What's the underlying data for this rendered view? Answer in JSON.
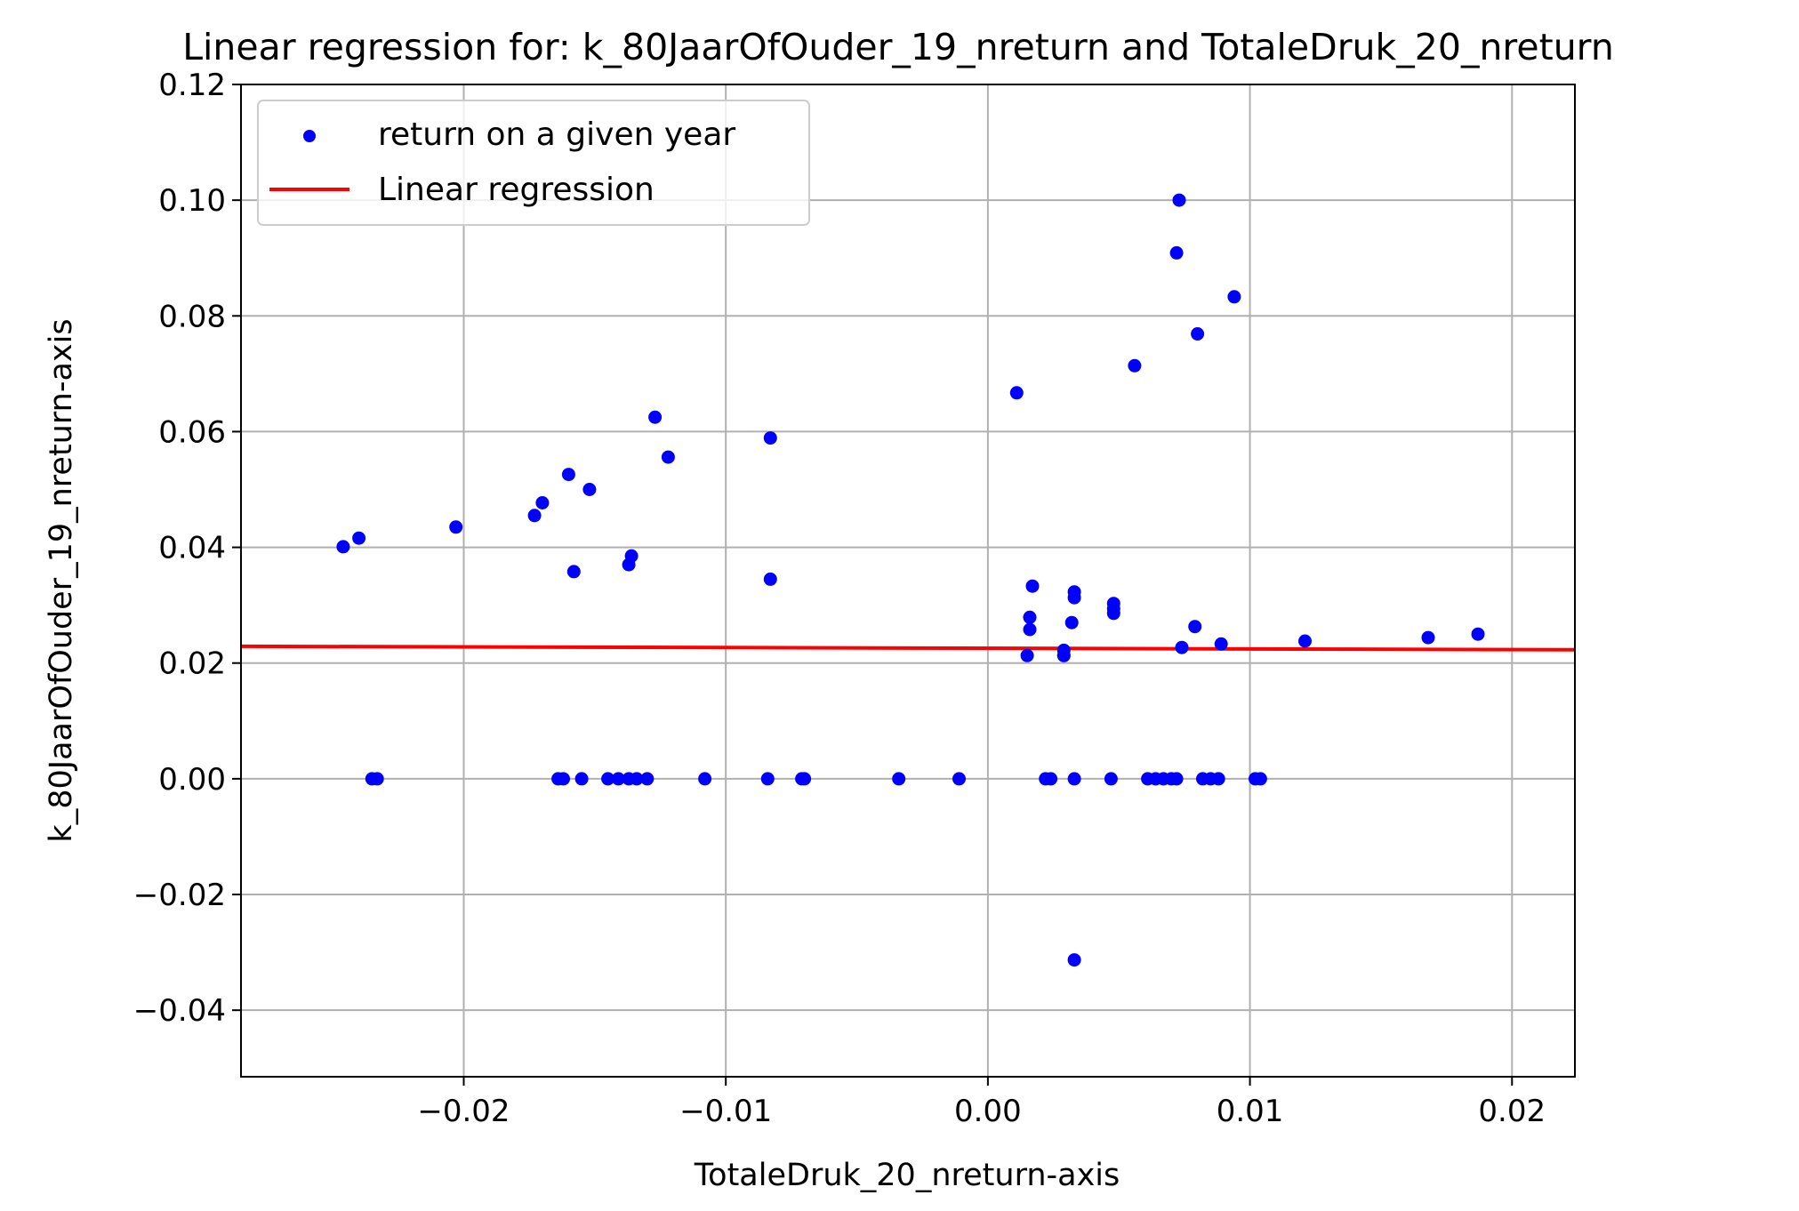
{
  "chart_data": {
    "type": "scatter",
    "title": "Linear regression for: k_80JaarOfOuder_19_nreturn and TotaleDruk_20_nreturn",
    "xlabel": "TotaleDruk_20_nreturn-axis",
    "ylabel": "k_80JaarOfOuder_19_nreturn-axis",
    "xlim": [
      -0.0285,
      0.0224
    ],
    "ylim": [
      -0.0515,
      0.12
    ],
    "xticks": [
      -0.02,
      -0.01,
      0.0,
      0.01,
      0.02
    ],
    "xtick_labels": [
      "−0.02",
      "−0.01",
      "0.00",
      "0.01",
      "0.02"
    ],
    "yticks": [
      -0.04,
      -0.02,
      0.0,
      0.02,
      0.04,
      0.06,
      0.08,
      0.1,
      0.12
    ],
    "ytick_labels": [
      "−0.04",
      "−0.02",
      "0.00",
      "0.02",
      "0.04",
      "0.06",
      "0.08",
      "0.10",
      "0.12"
    ],
    "grid": true,
    "legend_position": "top-left",
    "colors": {
      "points": "#0000ff",
      "regression": "#ff0000",
      "grid": "#b0b0b0"
    },
    "series": [
      {
        "name": "return on a given year",
        "kind": "scatter",
        "points": [
          [
            -0.0246,
            0.0401
          ],
          [
            -0.024,
            0.0416
          ],
          [
            -0.0235,
            0.0
          ],
          [
            -0.0233,
            0.0
          ],
          [
            -0.0203,
            0.0435
          ],
          [
            -0.0173,
            0.0455
          ],
          [
            -0.017,
            0.0477
          ],
          [
            -0.0164,
            0.0
          ],
          [
            -0.0162,
            0.0
          ],
          [
            -0.016,
            0.0526
          ],
          [
            -0.0158,
            0.0358
          ],
          [
            -0.0155,
            0.0
          ],
          [
            -0.0152,
            0.05
          ],
          [
            -0.0145,
            0.0
          ],
          [
            -0.0141,
            0.0
          ],
          [
            -0.0137,
            0.037
          ],
          [
            -0.0136,
            0.0385
          ],
          [
            -0.0137,
            0.0
          ],
          [
            -0.0134,
            0.0
          ],
          [
            -0.0127,
            0.0625
          ],
          [
            -0.013,
            0.0
          ],
          [
            -0.0122,
            0.0556
          ],
          [
            -0.0108,
            0.0
          ],
          [
            -0.0084,
            0.0
          ],
          [
            -0.0083,
            0.0589
          ],
          [
            -0.0083,
            0.0345
          ],
          [
            -0.0071,
            0.0
          ],
          [
            -0.007,
            0.0
          ],
          [
            -0.0034,
            0.0
          ],
          [
            -0.0011,
            0.0
          ],
          [
            0.0011,
            0.0667
          ],
          [
            0.0015,
            0.0213
          ],
          [
            0.0016,
            0.0258
          ],
          [
            0.0016,
            0.0279
          ],
          [
            0.0017,
            0.0333
          ],
          [
            0.0022,
            0.0
          ],
          [
            0.0024,
            0.0
          ],
          [
            0.0029,
            0.0222
          ],
          [
            0.0029,
            0.0213
          ],
          [
            0.0029,
            0.0213
          ],
          [
            0.0032,
            0.027
          ],
          [
            0.0033,
            0.0313
          ],
          [
            0.0033,
            0.0323
          ],
          [
            0.0033,
            0.0
          ],
          [
            0.0033,
            -0.0313
          ],
          [
            0.0047,
            0.0
          ],
          [
            0.0048,
            0.0286
          ],
          [
            0.0048,
            0.0294
          ],
          [
            0.0048,
            0.0303
          ],
          [
            0.0056,
            0.0714
          ],
          [
            0.0061,
            0.0
          ],
          [
            0.0064,
            0.0
          ],
          [
            0.0067,
            0.0
          ],
          [
            0.007,
            0.0
          ],
          [
            0.0072,
            0.0909
          ],
          [
            0.0072,
            0.0
          ],
          [
            0.0073,
            0.1
          ],
          [
            0.0074,
            0.0227
          ],
          [
            0.0079,
            0.0263
          ],
          [
            0.008,
            0.0769
          ],
          [
            0.0082,
            0.0
          ],
          [
            0.0085,
            0.0
          ],
          [
            0.0088,
            0.0
          ],
          [
            0.0089,
            0.0233
          ],
          [
            0.0094,
            0.0833
          ],
          [
            0.0102,
            0.0
          ],
          [
            0.0104,
            0.0
          ],
          [
            0.0121,
            0.0238
          ],
          [
            0.0168,
            0.0244
          ],
          [
            0.0187,
            0.025
          ]
        ]
      },
      {
        "name": "Linear regression",
        "kind": "line",
        "points": [
          [
            -0.0285,
            0.0229
          ],
          [
            0.0224,
            0.0223
          ]
        ]
      }
    ]
  }
}
